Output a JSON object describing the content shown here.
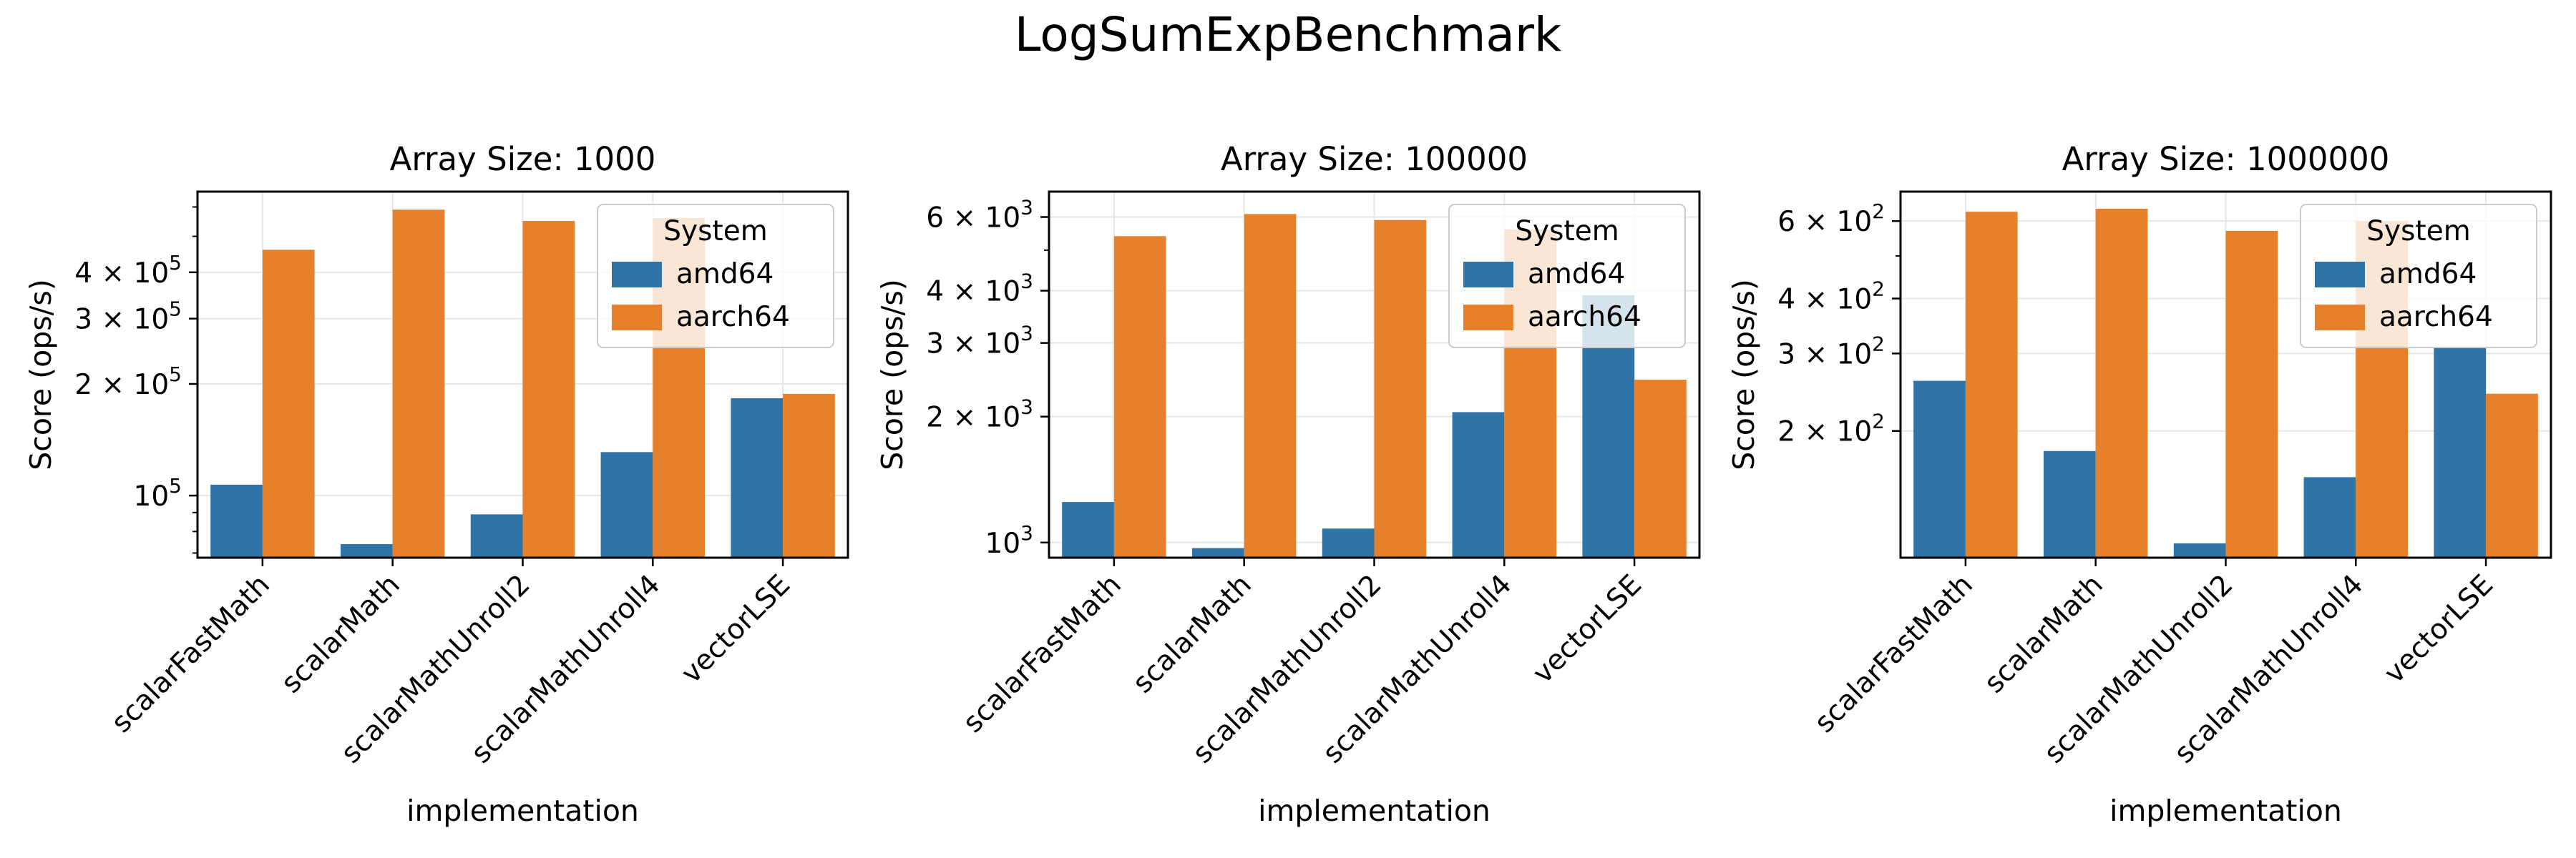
{
  "figure": {
    "title": "LogSumExpBenchmark"
  },
  "colors": {
    "amd64": "#2f73a7",
    "aarch64": "#e6802a"
  },
  "chart_data": [
    {
      "type": "bar",
      "title": "Array Size: 1000",
      "xlabel": "implementation",
      "ylabel": "Score (ops/s)",
      "yscale": "log",
      "ylim": [
        68000,
        660000
      ],
      "yticks": [
        {
          "value": 100000,
          "label": "10",
          "exp": "5"
        },
        {
          "value": 200000,
          "label": "2 × 10",
          "exp": "5"
        },
        {
          "value": 300000,
          "label": "3 × 10",
          "exp": "5"
        },
        {
          "value": 400000,
          "label": "4 × 10",
          "exp": "5"
        }
      ],
      "minor_ticks": [
        70000,
        80000,
        90000,
        500000,
        600000
      ],
      "categories": [
        "scalarFastMath",
        "scalarMath",
        "scalarMathUnroll2",
        "scalarMathUnroll4",
        "vectorLSE"
      ],
      "series": [
        {
          "name": "amd64",
          "values": [
            107000,
            74000,
            89000,
            131000,
            183000
          ]
        },
        {
          "name": "aarch64",
          "values": [
            460000,
            590000,
            550000,
            560000,
            188000
          ]
        }
      ],
      "legend": {
        "title": "System",
        "position": "upper right"
      },
      "grid": true
    },
    {
      "type": "bar",
      "title": "Array Size: 100000",
      "xlabel": "implementation",
      "ylabel": "Score (ops/s)",
      "yscale": "log",
      "ylim": [
        920,
        6900
      ],
      "yticks": [
        {
          "value": 1000,
          "label": "10",
          "exp": "3"
        },
        {
          "value": 2000,
          "label": "2 × 10",
          "exp": "3"
        },
        {
          "value": 3000,
          "label": "3 × 10",
          "exp": "3"
        },
        {
          "value": 4000,
          "label": "4 × 10",
          "exp": "3"
        },
        {
          "value": 6000,
          "label": "6 × 10",
          "exp": "3"
        }
      ],
      "minor_ticks": [
        5000
      ],
      "categories": [
        "scalarFastMath",
        "scalarMath",
        "scalarMathUnroll2",
        "scalarMathUnroll4",
        "vectorLSE"
      ],
      "series": [
        {
          "name": "amd64",
          "values": [
            1250,
            970,
            1080,
            2050,
            3900
          ]
        },
        {
          "name": "aarch64",
          "values": [
            5400,
            6100,
            5900,
            5600,
            2450
          ]
        }
      ],
      "legend": {
        "title": "System",
        "position": "upper right"
      },
      "grid": true
    },
    {
      "type": "bar",
      "title": "Array Size: 1000000",
      "xlabel": "implementation",
      "ylabel": "Score (ops/s)",
      "yscale": "log",
      "ylim": [
        103,
        700
      ],
      "yticks": [
        {
          "value": 200,
          "label": "2 × 10",
          "exp": "2"
        },
        {
          "value": 300,
          "label": "3 × 10",
          "exp": "2"
        },
        {
          "value": 400,
          "label": "4 × 10",
          "exp": "2"
        },
        {
          "value": 600,
          "label": "6 × 10",
          "exp": "2"
        }
      ],
      "minor_ticks": [
        500
      ],
      "categories": [
        "scalarFastMath",
        "scalarMath",
        "scalarMathUnroll2",
        "scalarMathUnroll4",
        "vectorLSE"
      ],
      "series": [
        {
          "name": "amd64",
          "values": [
            260,
            180,
            111,
            157,
            310
          ]
        },
        {
          "name": "aarch64",
          "values": [
            630,
            640,
            570,
            600,
            243
          ]
        }
      ],
      "legend": {
        "title": "System",
        "position": "upper right"
      },
      "grid": true
    }
  ]
}
